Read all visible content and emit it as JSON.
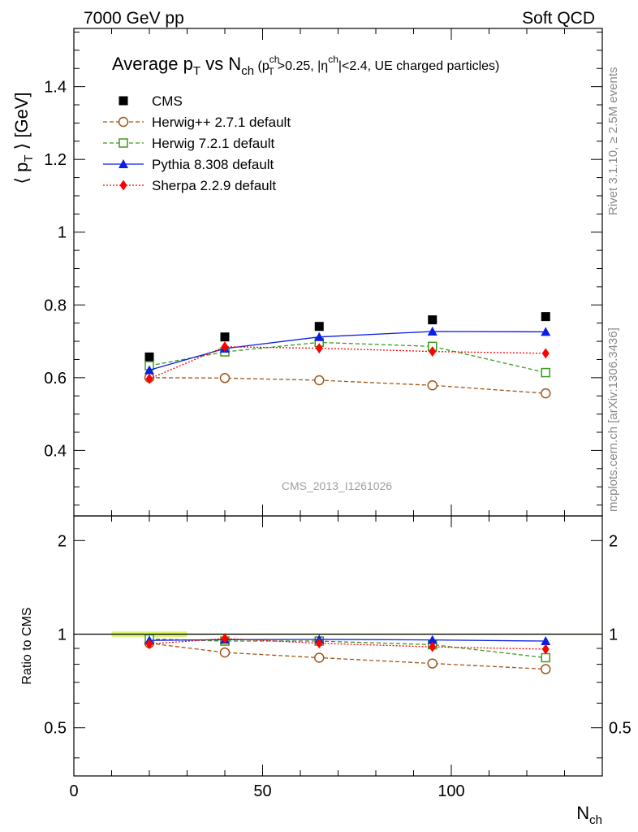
{
  "header": {
    "left": "7000 GeV pp",
    "right": "Soft QCD"
  },
  "side_labels": {
    "rivet": "Rivet 3.1.10, ≥ 2.5M events",
    "mcplots": "mcplots.cern.ch [arXiv:1306.3436]"
  },
  "watermark": "CMS_2013_I1261026",
  "title": {
    "main": "Average p",
    "main_sub": "T",
    "vs": " vs N",
    "vs_sub": "ch",
    "cuts_open": " (p",
    "cuts_pt_sup": "ch",
    "cuts_pt_sub": "T",
    "cuts_mid": ">0.25, |η",
    "cuts_eta_sup": "ch",
    "cuts_end": "|<2.4, UE charged particles)"
  },
  "colors": {
    "cms": "#000000",
    "herwigpp": "#a0561a",
    "herwig7": "#3b9b1e",
    "pythia": "#0a1ee6",
    "sherpa": "#ff0000",
    "band": "#d9f56e"
  },
  "chart_data": [
    {
      "type": "line",
      "panel": "main",
      "xlabel": "N",
      "xlabel_sub": "ch",
      "ylabel": "⟨ p",
      "ylabel_sub": "T",
      "ylabel_rest": " ⟩ [GeV]",
      "xlim": [
        0,
        140
      ],
      "ylim": [
        0.22,
        1.56
      ],
      "yticks": [
        0.4,
        0.6,
        0.8,
        1,
        1.2,
        1.4
      ],
      "ytick_labels": [
        "0.4",
        "0.6",
        "0.8",
        "1",
        "1.2",
        "1.4"
      ],
      "legend_position": "top-left",
      "x": [
        20,
        40,
        65,
        95,
        125
      ],
      "series": [
        {
          "name": "CMS",
          "key": "cms",
          "marker": "square-filled",
          "line": "none",
          "values": [
            0.657,
            0.712,
            0.741,
            0.759,
            0.768
          ]
        },
        {
          "name": "Herwig++ 2.7.1 default",
          "key": "herwigpp",
          "marker": "circle-open",
          "line": "dashed",
          "values": [
            0.6,
            0.599,
            0.593,
            0.579,
            0.557
          ]
        },
        {
          "name": "Herwig 7.2.1 default",
          "key": "herwig7",
          "marker": "square-open",
          "line": "dashed",
          "values": [
            0.633,
            0.671,
            0.697,
            0.686,
            0.614
          ]
        },
        {
          "name": "Pythia 8.308 default",
          "key": "pythia",
          "marker": "triangle-filled",
          "line": "solid",
          "values": [
            0.621,
            0.68,
            0.712,
            0.727,
            0.726
          ]
        },
        {
          "name": "Sherpa 2.2.9 default",
          "key": "sherpa",
          "marker": "diamond-filled",
          "line": "dotted",
          "values": [
            0.597,
            0.685,
            0.681,
            0.672,
            0.667
          ]
        }
      ]
    },
    {
      "type": "line",
      "panel": "ratio",
      "ylabel": "Ratio to CMS",
      "xlabel": "N",
      "xlabel_sub": "ch",
      "xlim": [
        0,
        140
      ],
      "ylim": [
        0.35,
        2.4
      ],
      "ylog": true,
      "yticks": [
        0.5,
        1,
        2
      ],
      "ytick_labels": [
        "0.5",
        "1",
        "2"
      ],
      "xticks": [
        0,
        50,
        100
      ],
      "xtick_labels": [
        "0",
        "50",
        "100"
      ],
      "band": {
        "x": [
          10,
          30
        ],
        "y": [
          0.98,
          1.02
        ]
      },
      "reference": 1,
      "x": [
        20,
        40,
        65,
        95,
        125
      ],
      "series": [
        {
          "name": "Herwig++ 2.7.1 default",
          "key": "herwigpp",
          "marker": "circle-open",
          "line": "dashed",
          "values": [
            0.935,
            0.873,
            0.84,
            0.805,
            0.772
          ]
        },
        {
          "name": "Herwig 7.2.1 default",
          "key": "herwig7",
          "marker": "square-open",
          "line": "dashed",
          "values": [
            0.965,
            0.95,
            0.95,
            0.925,
            0.84
          ]
        },
        {
          "name": "Pythia 8.308 default",
          "key": "pythia",
          "marker": "triangle-filled",
          "line": "solid",
          "values": [
            0.955,
            0.96,
            0.962,
            0.958,
            0.95
          ]
        },
        {
          "name": "Sherpa 2.2.9 default",
          "key": "sherpa",
          "marker": "diamond-filled",
          "line": "dotted",
          "values": [
            0.93,
            0.968,
            0.935,
            0.91,
            0.895
          ]
        }
      ]
    }
  ]
}
